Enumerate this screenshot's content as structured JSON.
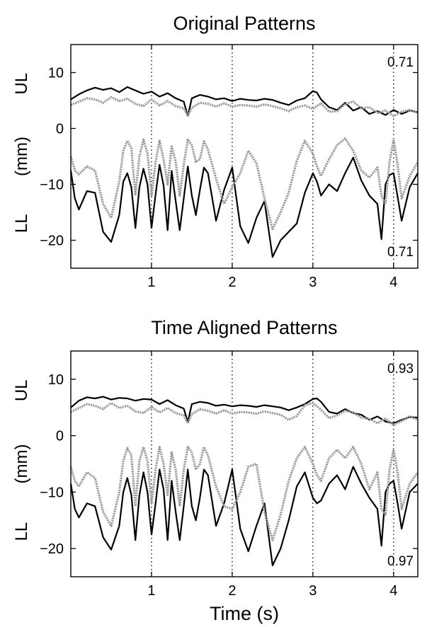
{
  "chart_data": [
    {
      "type": "line",
      "title": "Original Patterns",
      "xlabel": "",
      "ylabel_upper": "UL",
      "ylabel_mid": "(mm)",
      "ylabel_lower": "LL",
      "xlim": [
        0,
        4.3
      ],
      "ylim": [
        -25,
        15
      ],
      "xticks": [
        1,
        2,
        3,
        4
      ],
      "yticks": [
        -20,
        -10,
        0,
        10
      ],
      "xtick_labels": [
        "1",
        "2",
        "3",
        "4"
      ],
      "ytick_labels": [
        "−20",
        "−10",
        "0",
        "10"
      ],
      "grid": "vertical dotted at 1, 2, 3, 4",
      "annotations": [
        {
          "text": "0.71",
          "position": "top-right"
        },
        {
          "text": "0.71",
          "position": "bottom-right"
        }
      ],
      "series": [
        {
          "color": "#000000",
          "style": "solid",
          "x": [
            0,
            0.1,
            0.2,
            0.3,
            0.4,
            0.5,
            0.6,
            0.7,
            0.8,
            0.9,
            1.0,
            1.1,
            1.2,
            1.3,
            1.4,
            1.45,
            1.5,
            1.6,
            1.7,
            1.8,
            1.9,
            2.0,
            2.1,
            2.2,
            2.3,
            2.4,
            2.5,
            2.6,
            2.7,
            2.8,
            2.9,
            3.0,
            3.05,
            3.1,
            3.2,
            3.3,
            3.4,
            3.5,
            3.6,
            3.7,
            3.8,
            3.9,
            4.0,
            4.1,
            4.2,
            4.3
          ],
          "y": [
            5.2,
            6.1,
            6.8,
            7.3,
            6.9,
            7.2,
            6.5,
            7.4,
            6.8,
            6.2,
            6.6,
            5.7,
            6.3,
            5.4,
            4.8,
            2.2,
            5.4,
            6.0,
            5.7,
            5.2,
            5.4,
            4.9,
            5.3,
            5.1,
            5.0,
            5.3,
            5.1,
            4.6,
            4.2,
            5.0,
            5.4,
            6.7,
            6.4,
            5.2,
            3.8,
            3.3,
            4.6,
            3.2,
            3.8,
            2.6,
            3.1,
            2.4,
            3.3,
            2.6,
            3.2,
            2.9
          ]
        },
        {
          "color": "#999999",
          "style": "dotted",
          "x": [
            0,
            0.1,
            0.2,
            0.3,
            0.4,
            0.5,
            0.6,
            0.7,
            0.8,
            0.9,
            1.0,
            1.1,
            1.2,
            1.3,
            1.4,
            1.45,
            1.5,
            1.6,
            1.7,
            1.8,
            1.9,
            2.0,
            2.1,
            2.2,
            2.3,
            2.4,
            2.5,
            2.6,
            2.7,
            2.8,
            2.9,
            3.0,
            3.1,
            3.2,
            3.3,
            3.4,
            3.5,
            3.6,
            3.7,
            3.8,
            3.9,
            4.0,
            4.1,
            4.2,
            4.3
          ],
          "y": [
            4.2,
            4.8,
            5.4,
            5.2,
            4.6,
            5.6,
            4.9,
            5.3,
            4.4,
            4.0,
            5.2,
            4.1,
            4.9,
            4.0,
            3.6,
            2.3,
            3.7,
            4.6,
            4.4,
            3.9,
            4.5,
            3.9,
            4.2,
            4.1,
            3.9,
            4.3,
            4.0,
            3.6,
            3.1,
            3.8,
            4.1,
            3.5,
            4.5,
            3.0,
            3.1,
            4.4,
            4.8,
            3.6,
            3.8,
            2.8,
            3.2,
            2.2,
            3.0,
            3.3,
            2.8
          ]
        },
        {
          "color": "#000000",
          "style": "solid",
          "x": [
            0,
            0.05,
            0.1,
            0.2,
            0.3,
            0.4,
            0.5,
            0.6,
            0.65,
            0.7,
            0.75,
            0.8,
            0.85,
            0.9,
            0.95,
            1.0,
            1.05,
            1.1,
            1.15,
            1.2,
            1.25,
            1.3,
            1.35,
            1.4,
            1.45,
            1.5,
            1.55,
            1.6,
            1.65,
            1.7,
            1.8,
            1.9,
            2.0,
            2.1,
            2.2,
            2.3,
            2.4,
            2.5,
            2.6,
            2.7,
            2.8,
            2.9,
            3.0,
            3.05,
            3.1,
            3.2,
            3.3,
            3.4,
            3.5,
            3.6,
            3.7,
            3.8,
            3.85,
            3.9,
            3.95,
            4.0,
            4.05,
            4.1,
            4.2,
            4.3
          ],
          "y": [
            -7.5,
            -12.5,
            -14.5,
            -11.2,
            -11.5,
            -18.5,
            -20.3,
            -15.5,
            -9.5,
            -8.0,
            -10.5,
            -17.8,
            -10.5,
            -7.2,
            -10.0,
            -17.8,
            -11.8,
            -6.5,
            -10.2,
            -18.2,
            -7.6,
            -13.0,
            -18.2,
            -12.5,
            -6.8,
            -12.0,
            -15.5,
            -11.0,
            -7.0,
            -8.0,
            -16.5,
            -11.0,
            -7.0,
            -17.5,
            -20.5,
            -16.0,
            -13.0,
            -23.0,
            -20.0,
            -18.5,
            -17.0,
            -11.5,
            -8.0,
            -9.5,
            -12.0,
            -10.0,
            -11.2,
            -8.0,
            -5.2,
            -9.3,
            -12.0,
            -13.5,
            -19.8,
            -10.0,
            -8.3,
            -8.0,
            -12.2,
            -16.5,
            -10.5,
            -8.0
          ]
        },
        {
          "color": "#999999",
          "style": "dotted",
          "x": [
            0,
            0.05,
            0.1,
            0.2,
            0.3,
            0.4,
            0.5,
            0.6,
            0.65,
            0.7,
            0.75,
            0.8,
            0.85,
            0.9,
            0.95,
            1.0,
            1.05,
            1.1,
            1.15,
            1.2,
            1.25,
            1.3,
            1.35,
            1.4,
            1.45,
            1.5,
            1.55,
            1.6,
            1.65,
            1.7,
            1.8,
            1.9,
            2.0,
            2.1,
            2.2,
            2.3,
            2.4,
            2.5,
            2.6,
            2.7,
            2.8,
            2.9,
            3.0,
            3.05,
            3.1,
            3.2,
            3.3,
            3.4,
            3.5,
            3.6,
            3.7,
            3.8,
            3.85,
            3.9,
            3.95,
            4.0,
            4.05,
            4.1,
            4.2,
            4.3
          ],
          "y": [
            -5.0,
            -7.5,
            -8.2,
            -6.8,
            -7.5,
            -13.5,
            -16.0,
            -9.5,
            -4.0,
            -2.2,
            -3.5,
            -12.0,
            -5.0,
            -2.0,
            -4.5,
            -12.0,
            -6.0,
            -2.2,
            -5.5,
            -10.0,
            -3.2,
            -6.0,
            -12.0,
            -6.5,
            -2.0,
            -3.0,
            -6.0,
            -5.5,
            -2.3,
            -3.8,
            -9.0,
            -13.5,
            -10.5,
            -8.0,
            -4.0,
            -6.2,
            -12.5,
            -18.0,
            -15.0,
            -11.5,
            -5.8,
            -2.2,
            -4.5,
            -6.8,
            -8.5,
            -5.5,
            -3.0,
            -1.8,
            -4.0,
            -7.5,
            -8.8,
            -7.0,
            -12.0,
            -13.5,
            -6.0,
            -2.0,
            -6.5,
            -12.5,
            -8.5,
            -6.0
          ]
        }
      ]
    },
    {
      "type": "line",
      "title": "Time Aligned Patterns",
      "xlabel": "Time (s)",
      "ylabel_upper": "UL",
      "ylabel_mid": "(mm)",
      "ylabel_lower": "LL",
      "xlim": [
        0,
        4.3
      ],
      "ylim": [
        -25,
        15
      ],
      "xticks": [
        1,
        2,
        3,
        4
      ],
      "yticks": [
        -20,
        -10,
        0,
        10
      ],
      "xtick_labels": [
        "1",
        "2",
        "3",
        "4"
      ],
      "ytick_labels": [
        "−20",
        "−10",
        "0",
        "10"
      ],
      "grid": "vertical dotted at 1, 2, 3, 4",
      "annotations": [
        {
          "text": "0.93",
          "position": "top-right"
        },
        {
          "text": "0.97",
          "position": "bottom-right"
        }
      ],
      "series": [
        {
          "color": "#000000",
          "style": "solid",
          "x": [
            0,
            0.1,
            0.2,
            0.3,
            0.4,
            0.5,
            0.6,
            0.7,
            0.8,
            0.9,
            1.0,
            1.1,
            1.2,
            1.3,
            1.4,
            1.45,
            1.5,
            1.6,
            1.7,
            1.8,
            1.9,
            2.0,
            2.1,
            2.2,
            2.3,
            2.4,
            2.5,
            2.6,
            2.7,
            2.8,
            2.9,
            3.0,
            3.05,
            3.1,
            3.2,
            3.3,
            3.4,
            3.5,
            3.6,
            3.7,
            3.8,
            3.9,
            4.0,
            4.1,
            4.2,
            4.3
          ],
          "y": [
            5.0,
            6.2,
            6.8,
            6.6,
            6.9,
            6.4,
            6.7,
            6.6,
            6.2,
            6.5,
            6.4,
            5.6,
            6.3,
            5.4,
            4.8,
            2.4,
            5.6,
            6.0,
            5.8,
            5.3,
            5.5,
            5.2,
            5.4,
            5.3,
            5.1,
            5.4,
            5.2,
            5.0,
            4.5,
            5.0,
            5.6,
            6.5,
            6.6,
            6.0,
            4.2,
            3.9,
            4.7,
            4.0,
            3.7,
            2.8,
            3.4,
            2.5,
            2.2,
            2.8,
            3.3,
            3.2
          ]
        },
        {
          "color": "#999999",
          "style": "dotted",
          "x": [
            0,
            0.1,
            0.2,
            0.3,
            0.4,
            0.5,
            0.6,
            0.7,
            0.8,
            0.9,
            1.0,
            1.1,
            1.2,
            1.3,
            1.4,
            1.45,
            1.5,
            1.6,
            1.7,
            1.8,
            1.9,
            2.0,
            2.1,
            2.2,
            2.3,
            2.4,
            2.5,
            2.6,
            2.7,
            2.8,
            2.9,
            3.0,
            3.1,
            3.2,
            3.3,
            3.4,
            3.5,
            3.6,
            3.7,
            3.8,
            3.9,
            4.0,
            4.1,
            4.2,
            4.3
          ],
          "y": [
            4.2,
            4.9,
            5.6,
            5.3,
            4.7,
            5.8,
            4.9,
            5.3,
            4.3,
            4.0,
            5.1,
            4.1,
            4.9,
            4.0,
            3.6,
            2.2,
            3.8,
            4.7,
            4.4,
            3.9,
            4.5,
            3.9,
            4.2,
            4.1,
            3.9,
            4.3,
            4.0,
            3.7,
            2.8,
            3.5,
            5.4,
            5.8,
            4.6,
            3.1,
            3.6,
            4.4,
            4.1,
            3.2,
            3.0,
            2.2,
            3.0,
            1.9,
            2.6,
            3.4,
            2.8
          ]
        },
        {
          "color": "#000000",
          "style": "solid",
          "x": [
            0,
            0.05,
            0.1,
            0.2,
            0.3,
            0.4,
            0.5,
            0.6,
            0.65,
            0.7,
            0.75,
            0.8,
            0.85,
            0.9,
            0.95,
            1.0,
            1.05,
            1.1,
            1.15,
            1.2,
            1.25,
            1.3,
            1.35,
            1.4,
            1.45,
            1.5,
            1.55,
            1.6,
            1.65,
            1.7,
            1.8,
            1.9,
            2.0,
            2.1,
            2.2,
            2.3,
            2.4,
            2.5,
            2.6,
            2.7,
            2.8,
            2.9,
            3.0,
            3.05,
            3.1,
            3.2,
            3.3,
            3.4,
            3.5,
            3.6,
            3.7,
            3.8,
            3.85,
            3.9,
            3.95,
            4.0,
            4.05,
            4.1,
            4.2,
            4.3
          ],
          "y": [
            -8.5,
            -13.0,
            -14.5,
            -12.0,
            -12.5,
            -18.0,
            -20.2,
            -16.0,
            -10.0,
            -7.5,
            -10.5,
            -18.5,
            -10.5,
            -6.5,
            -10.0,
            -17.5,
            -12.0,
            -6.0,
            -9.5,
            -18.5,
            -8.0,
            -13.5,
            -18.5,
            -12.5,
            -6.0,
            -12.5,
            -15.0,
            -11.0,
            -6.0,
            -7.0,
            -16.0,
            -12.0,
            -6.0,
            -16.5,
            -20.5,
            -16.0,
            -12.0,
            -23.0,
            -20.0,
            -15.0,
            -9.0,
            -6.5,
            -11.0,
            -12.0,
            -11.5,
            -8.5,
            -7.0,
            -9.5,
            -5.5,
            -8.5,
            -11.0,
            -13.0,
            -19.5,
            -10.0,
            -8.5,
            -8.0,
            -12.0,
            -16.5,
            -10.0,
            -8.5
          ]
        },
        {
          "color": "#999999",
          "style": "dotted",
          "x": [
            0,
            0.05,
            0.1,
            0.2,
            0.3,
            0.4,
            0.5,
            0.6,
            0.65,
            0.7,
            0.75,
            0.8,
            0.85,
            0.9,
            0.95,
            1.0,
            1.05,
            1.1,
            1.15,
            1.2,
            1.25,
            1.3,
            1.35,
            1.4,
            1.45,
            1.5,
            1.55,
            1.6,
            1.65,
            1.7,
            1.8,
            1.9,
            2.0,
            2.1,
            2.2,
            2.3,
            2.4,
            2.5,
            2.6,
            2.7,
            2.8,
            2.9,
            3.0,
            3.05,
            3.1,
            3.2,
            3.3,
            3.4,
            3.5,
            3.6,
            3.7,
            3.8,
            3.85,
            3.9,
            3.95,
            4.0,
            4.05,
            4.1,
            4.2,
            4.3
          ],
          "y": [
            -5.5,
            -8.0,
            -9.0,
            -6.5,
            -7.5,
            -13.5,
            -16.0,
            -10.0,
            -4.5,
            -2.2,
            -3.5,
            -12.5,
            -4.5,
            -2.0,
            -4.5,
            -12.0,
            -6.0,
            -2.0,
            -5.0,
            -10.5,
            -3.0,
            -6.0,
            -12.5,
            -6.0,
            -2.0,
            -3.0,
            -6.0,
            -5.0,
            -2.0,
            -3.5,
            -9.0,
            -12.5,
            -13.0,
            -10.0,
            -5.5,
            -5.0,
            -13.5,
            -18.5,
            -14.0,
            -8.0,
            -4.0,
            -2.0,
            -5.0,
            -7.0,
            -8.0,
            -4.0,
            -2.5,
            -4.0,
            -2.0,
            -5.0,
            -9.5,
            -6.5,
            -13.0,
            -14.0,
            -6.0,
            -2.5,
            -6.5,
            -13.0,
            -8.5,
            -6.5
          ]
        }
      ]
    }
  ]
}
